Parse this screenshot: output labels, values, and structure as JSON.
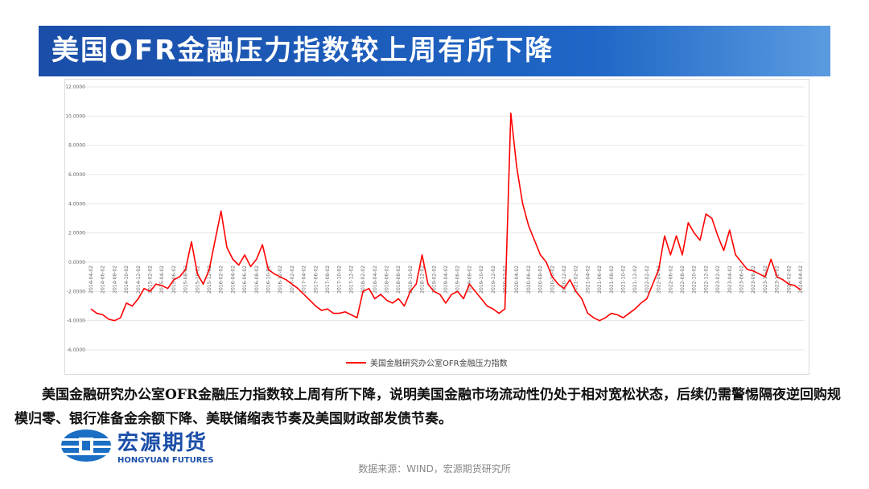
{
  "header": {
    "title": "美国OFR金融压力指数较上周有所下降"
  },
  "chart_data": {
    "type": "line",
    "categories": [
      "2014-04-02",
      null,
      "2014-06-02",
      null,
      "2014-08-02",
      null,
      "2014-10-02",
      null,
      "2014-12-02",
      null,
      "2015-02-02",
      null,
      "2015-04-02",
      null,
      "2015-06-02",
      null,
      "2015-08-02",
      null,
      "2015-10-02",
      null,
      "2015-12-02",
      null,
      "2016-02-02",
      null,
      "2016-04-02",
      null,
      "2016-06-02",
      null,
      "2016-08-02",
      null,
      "2016-10-02",
      null,
      "2016-12-02",
      null,
      "2017-02-02",
      null,
      "2017-04-02",
      null,
      "2017-06-02",
      null,
      "2017-08-02",
      null,
      "2017-10-02",
      null,
      "2017-12-02",
      null,
      "2018-02-02",
      null,
      "2018-04-02",
      null,
      "2018-06-02",
      null,
      "2018-08-02",
      null,
      "2018-10-02",
      null,
      "2018-12-02",
      null,
      "2019-02-02",
      null,
      "2019-04-02",
      null,
      "2019-06-02",
      null,
      "2019-08-02",
      null,
      "2019-10-02",
      null,
      "2019-12-02",
      null,
      "2020-02-02",
      null,
      "2020-04-02",
      null,
      "2020-06-02",
      null,
      "2020-08-02",
      null,
      "2020-10-02",
      null,
      "2020-12-02",
      null,
      "2021-02-02",
      null,
      "2021-04-02",
      null,
      "2021-06-02",
      null,
      "2021-08-02",
      null,
      "2021-10-02",
      null,
      "2021-12-02",
      null,
      "2022-02-02",
      null,
      "2022-04-02",
      null,
      "2022-06-02",
      null,
      "2022-08-02",
      null,
      "2022-10-02",
      null,
      "2022-12-02",
      null,
      "2023-02-02",
      null,
      "2023-04-02",
      null,
      "2023-06-02",
      null,
      "2023-08-02",
      null,
      "2023-10-02",
      null,
      "2023-12-02",
      null,
      "2024-02-02",
      null,
      "2024-04-02"
    ],
    "series": [
      {
        "name": "美国金融研究办公室OFR金融压力指数",
        "color": "#ff0000",
        "values": [
          -3.2,
          -3.5,
          -3.6,
          -3.9,
          -4.0,
          -3.8,
          -2.8,
          -3.0,
          -2.5,
          -1.8,
          -2.0,
          -1.5,
          -1.6,
          -1.8,
          -1.2,
          -1.0,
          -0.5,
          1.4,
          -0.8,
          -1.5,
          -0.5,
          1.5,
          3.5,
          1.0,
          0.2,
          -0.2,
          0.5,
          -0.3,
          0.2,
          1.2,
          -0.5,
          -0.8,
          -1.0,
          -1.2,
          -1.5,
          -1.8,
          -2.2,
          -2.6,
          -3.0,
          -3.3,
          -3.2,
          -3.5,
          -3.5,
          -3.4,
          -3.6,
          -3.8,
          -2.0,
          -1.8,
          -2.5,
          -2.2,
          -2.6,
          -2.8,
          -2.5,
          -3.0,
          -2.0,
          -1.5,
          0.5,
          -1.5,
          -2.0,
          -2.2,
          -2.8,
          -2.2,
          -2.0,
          -2.5,
          -1.5,
          -2.0,
          -2.5,
          -3.0,
          -3.2,
          -3.5,
          -3.2,
          10.2,
          6.5,
          4.0,
          2.5,
          1.5,
          0.5,
          0.0,
          -1.0,
          -1.5,
          -1.8,
          -1.2,
          -2.0,
          -2.5,
          -3.5,
          -3.8,
          -4.0,
          -3.8,
          -3.5,
          -3.6,
          -3.8,
          -3.5,
          -3.2,
          -2.8,
          -2.5,
          -1.5,
          -0.5,
          1.8,
          0.5,
          1.8,
          0.5,
          2.7,
          2.0,
          1.5,
          3.3,
          3.0,
          1.8,
          0.8,
          2.2,
          0.5,
          0.0,
          -0.5,
          -0.6,
          -0.8,
          -1.0,
          0.2,
          -1.0,
          -1.2,
          -1.5,
          -1.6,
          -1.9
        ]
      }
    ],
    "ylim": [
      -6,
      12
    ],
    "yticks": [
      {
        "value": -6,
        "label": "-6.0000"
      },
      {
        "value": -4,
        "label": "-4.0000"
      },
      {
        "value": -2,
        "label": "-2.0000"
      },
      {
        "value": 0,
        "label": "0.0000"
      },
      {
        "value": 2,
        "label": "2.0000"
      },
      {
        "value": 4,
        "label": "4.0000"
      },
      {
        "value": 6,
        "label": "6.0000"
      },
      {
        "value": 8,
        "label": "8.0000"
      },
      {
        "value": 10,
        "label": "10.0000"
      },
      {
        "value": 12,
        "label": "12.0000"
      }
    ],
    "grid": true
  },
  "body": {
    "text": "美国金融研究办公室OFR金融压力指数较上周有所下降，说明美国金融市场流动性仍处于相对宽松状态，后续仍需警惕隔夜逆回购规模归零、银行准备金余额下降、美联储缩表节奏及美国财政部发债节奏。"
  },
  "logo": {
    "name": "宏源期货",
    "english": "HONGYUAN FUTURES"
  },
  "footer": {
    "source": "数据来源：WIND，宏源期货研究所"
  }
}
